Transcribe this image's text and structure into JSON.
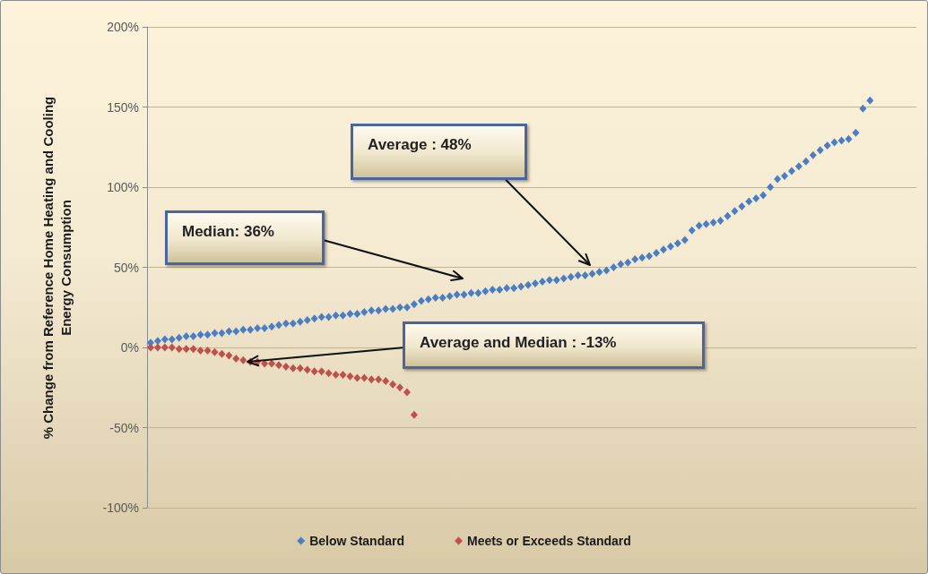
{
  "chart_data": {
    "type": "scatter",
    "ylabel": "% Change from Reference Home Heating and Cooling Energy Consumption",
    "categories": [
      null,
      null,
      null,
      null,
      null,
      null,
      null,
      null,
      null,
      null,
      null,
      null,
      null,
      null,
      null,
      null,
      null,
      null,
      null,
      null,
      null,
      null,
      null,
      null,
      null,
      null,
      null,
      null,
      null,
      null,
      null,
      null,
      null,
      null,
      null,
      null,
      null,
      null,
      null,
      null,
      null,
      null,
      null,
      null,
      null,
      null,
      null,
      null,
      null,
      null,
      null,
      null,
      null,
      null,
      null,
      null,
      null,
      null,
      null,
      null,
      null,
      null,
      null,
      null,
      null,
      null,
      null,
      null,
      null,
      null,
      null,
      null,
      null,
      null,
      null,
      null,
      null,
      null,
      null,
      null,
      null,
      null,
      null,
      null,
      null,
      null,
      null,
      null,
      null,
      null,
      null,
      null,
      null,
      null,
      null,
      null,
      null,
      null,
      null,
      null,
      null,
      null,
      null,
      null,
      null,
      null,
      null,
      null
    ],
    "series": [
      {
        "name": "Below Standard",
        "color": "#4a7ec4",
        "values": [
          3,
          4,
          5,
          5,
          6,
          7,
          7,
          8,
          8,
          9,
          9,
          10,
          10,
          11,
          11,
          12,
          12,
          13,
          14,
          15,
          15,
          16,
          17,
          18,
          19,
          19,
          20,
          20,
          21,
          21,
          22,
          23,
          23,
          24,
          24,
          25,
          25,
          27,
          29,
          30,
          31,
          31,
          32,
          33,
          33,
          34,
          34,
          35,
          36,
          36,
          37,
          37,
          38,
          39,
          40,
          41,
          42,
          42,
          43,
          44,
          45,
          45,
          46,
          47,
          48,
          50,
          52,
          53,
          55,
          56,
          57,
          59,
          61,
          63,
          65,
          67,
          73,
          76,
          77,
          78,
          79,
          82,
          85,
          88,
          91,
          93,
          95,
          100,
          105,
          107,
          110,
          113,
          116,
          120,
          123,
          126,
          128,
          129,
          130,
          134,
          149,
          154,
          null,
          null,
          null,
          null,
          null,
          null
        ]
      },
      {
        "name": "Meets or Exceeds Standard",
        "color": "#c0504d",
        "values": [
          0,
          0,
          0,
          0,
          -1,
          -1,
          -1,
          -2,
          -2,
          -3,
          -4,
          -5,
          -7,
          -8,
          -9,
          -9,
          -10,
          -10,
          -11,
          -12,
          -13,
          -13,
          -14,
          -15,
          -15,
          -16,
          -17,
          -17,
          -18,
          -19,
          -19,
          -20,
          -20,
          -21,
          -23,
          -25,
          -28,
          -42,
          null,
          null,
          null,
          null,
          null,
          null,
          null,
          null,
          null,
          null,
          null,
          null,
          null,
          null,
          null,
          null,
          null,
          null,
          null,
          null,
          null,
          null,
          null,
          null,
          null,
          null,
          null,
          null,
          null,
          null,
          null,
          null,
          null,
          null,
          null,
          null,
          null,
          null,
          null,
          null,
          null,
          null,
          null,
          null,
          null,
          null,
          null,
          null,
          null,
          null,
          null,
          null,
          null,
          null,
          null,
          null,
          null,
          null,
          null,
          null,
          null,
          null,
          null,
          null,
          null,
          null,
          null,
          null,
          null,
          null
        ]
      }
    ],
    "ylim": [
      -100,
      200
    ],
    "yticks": [
      {
        "value": -100,
        "label": "-100%"
      },
      {
        "value": -50,
        "label": "-50%"
      },
      {
        "value": 0,
        "label": "0%"
      },
      {
        "value": 50,
        "label": "50%"
      },
      {
        "value": 100,
        "label": "100%"
      },
      {
        "value": 150,
        "label": "150%"
      },
      {
        "value": 200,
        "label": "200%"
      }
    ],
    "grid": "y",
    "legend": "bottom",
    "marker": "diamond",
    "tick_labels": "y",
    "annotations": [
      "Average : 48%",
      "Median: 36%",
      "Average and Median : -13%"
    ]
  }
}
